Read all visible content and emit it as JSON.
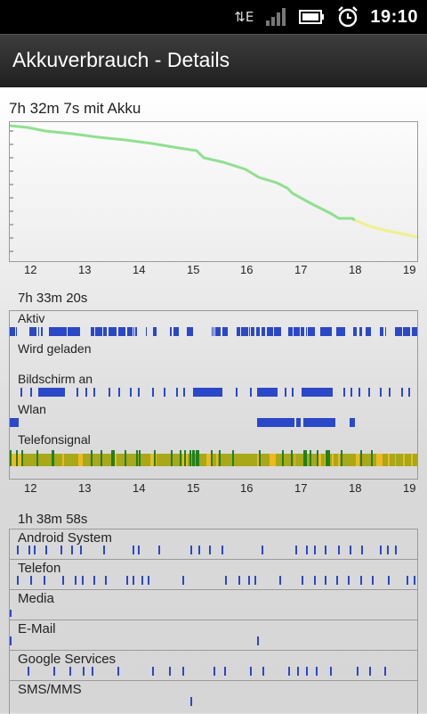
{
  "status_bar": {
    "network_type": "E",
    "time": "19:10",
    "icons": [
      "data-activity-icon",
      "signal-icon",
      "battery-icon",
      "alarm-icon"
    ]
  },
  "header": {
    "title": "Akkuverbrauch - Details"
  },
  "battery_chart": {
    "label": "7h 32m 7s mit Akku",
    "x_ticks": [
      "12",
      "13",
      "14",
      "15",
      "16",
      "17",
      "18",
      "19"
    ],
    "colors": {
      "line_green": "#90e090",
      "line_yellow": "#f0f08a"
    }
  },
  "activity": {
    "label": "7h 33m 20s",
    "rows": [
      {
        "name": "Aktiv"
      },
      {
        "name": "Wird geladen"
      },
      {
        "name": "Bildschirm an"
      },
      {
        "name": "Wlan"
      },
      {
        "name": "Telefonsignal"
      }
    ],
    "x_ticks": [
      "12",
      "13",
      "14",
      "15",
      "16",
      "17",
      "18",
      "19"
    ],
    "colors": {
      "bar": "#2a48c8",
      "signal_yellow": "#f0b820",
      "signal_olive": "#a8a818",
      "signal_green": "#208020"
    }
  },
  "apps": {
    "label": "1h 38m 58s",
    "items": [
      {
        "name": "Android System"
      },
      {
        "name": "Telefon"
      },
      {
        "name": "Media"
      },
      {
        "name": "E-Mail"
      },
      {
        "name": "Google Services"
      },
      {
        "name": "SMS/MMS"
      }
    ]
  }
}
